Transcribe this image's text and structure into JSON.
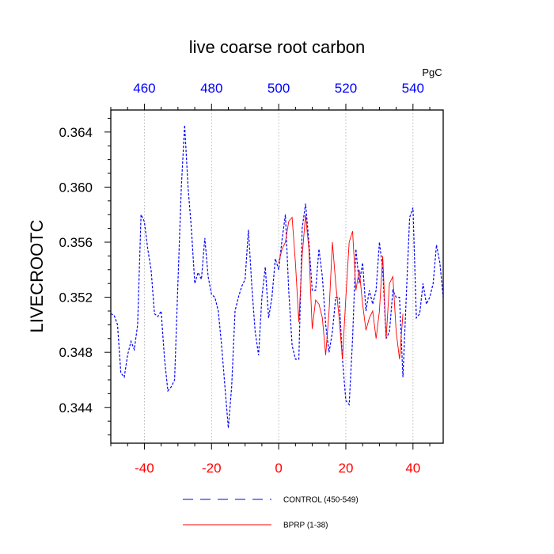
{
  "chart_data": {
    "type": "line",
    "title": "live coarse root carbon",
    "ylabel": "LIVECROOTC",
    "units_label": "PgC",
    "xlim": [
      -50,
      49
    ],
    "ylim": [
      0.3414,
      0.3656
    ],
    "x_ticks_bottom": [
      -40,
      -20,
      0,
      20,
      40
    ],
    "x_ticks_top": [
      460,
      480,
      500,
      520,
      540
    ],
    "y_ticks": [
      0.344,
      0.348,
      0.352,
      0.356,
      0.36,
      0.364
    ],
    "y_tick_labels": [
      "0.344",
      "0.348",
      "0.352",
      "0.356",
      "0.360",
      "0.364"
    ],
    "vertical_gridlines_at": [
      -40,
      -20,
      0,
      20,
      40
    ],
    "series": [
      {
        "name": "CONTROL (450-549)",
        "color": "#0000ff",
        "style": "dashed",
        "x": [
          -50,
          -49,
          -48,
          -47,
          -46,
          -45,
          -44,
          -43,
          -42,
          -41,
          -40,
          -39,
          -38,
          -37,
          -36,
          -35,
          -34,
          -33,
          -32,
          -31,
          -30,
          -29,
          -28,
          -27,
          -26,
          -25,
          -24,
          -23,
          -22,
          -21,
          -20,
          -19,
          -18,
          -17,
          -16,
          -15,
          -14,
          -13,
          -12,
          -11,
          -10,
          -9,
          -8,
          -7,
          -6,
          -5,
          -4,
          -3,
          -2,
          -1,
          0,
          1,
          2,
          3,
          4,
          5,
          6,
          7,
          8,
          9,
          10,
          11,
          12,
          13,
          14,
          15,
          16,
          17,
          18,
          19,
          20,
          21,
          22,
          23,
          24,
          25,
          26,
          27,
          28,
          29,
          30,
          31,
          32,
          33,
          34,
          35,
          36,
          37,
          38,
          39,
          40,
          41,
          42,
          43,
          44,
          45,
          46,
          47,
          48,
          49
        ],
        "y": [
          0.3508,
          0.3507,
          0.35,
          0.3465,
          0.3462,
          0.3478,
          0.3488,
          0.3482,
          0.35,
          0.358,
          0.3575,
          0.3555,
          0.354,
          0.3508,
          0.3506,
          0.351,
          0.3475,
          0.3452,
          0.3455,
          0.346,
          0.353,
          0.36,
          0.3645,
          0.36,
          0.357,
          0.353,
          0.3538,
          0.3533,
          0.3563,
          0.3535,
          0.3522,
          0.352,
          0.351,
          0.3485,
          0.3455,
          0.3425,
          0.3455,
          0.351,
          0.352,
          0.3528,
          0.3533,
          0.3569,
          0.3528,
          0.3495,
          0.3478,
          0.352,
          0.3542,
          0.3505,
          0.352,
          0.3548,
          0.354,
          0.3562,
          0.358,
          0.3525,
          0.3485,
          0.3475,
          0.3475,
          0.357,
          0.3588,
          0.356,
          0.3525,
          0.3525,
          0.3555,
          0.3535,
          0.35,
          0.348,
          0.3495,
          0.352,
          0.352,
          0.3475,
          0.3445,
          0.3442,
          0.349,
          0.3555,
          0.353,
          0.3545,
          0.351,
          0.3525,
          0.3515,
          0.3525,
          0.356,
          0.354,
          0.349,
          0.3495,
          0.3525,
          0.352,
          0.352,
          0.3462,
          0.352,
          0.3578,
          0.3585,
          0.3505,
          0.3508,
          0.353,
          0.3515,
          0.352,
          0.353,
          0.3558,
          0.3545,
          0.352
        ]
      },
      {
        "name": "BPRP (1-38)",
        "color": "#ff0000",
        "style": "solid",
        "x": [
          0,
          1,
          2,
          3,
          4,
          5,
          6,
          7,
          8,
          9,
          10,
          11,
          12,
          13,
          14,
          15,
          16,
          17,
          18,
          19,
          20,
          21,
          22,
          23,
          24,
          25,
          26,
          27,
          28,
          29,
          30,
          31,
          32,
          33,
          34,
          35,
          36,
          37
        ],
        "y": [
          0.3545,
          0.3555,
          0.356,
          0.3575,
          0.3578,
          0.3545,
          0.3502,
          0.355,
          0.358,
          0.3555,
          0.3497,
          0.3518,
          0.3515,
          0.3505,
          0.3478,
          0.351,
          0.356,
          0.353,
          0.3505,
          0.3475,
          0.352,
          0.356,
          0.3568,
          0.3525,
          0.354,
          0.3515,
          0.3496,
          0.3505,
          0.351,
          0.349,
          0.351,
          0.355,
          0.349,
          0.353,
          0.3535,
          0.3495,
          0.3475,
          0.3508
        ]
      }
    ],
    "legend": [
      {
        "label": "CONTROL (450-549)",
        "style": "dashed",
        "color": "#0000ff"
      },
      {
        "label": "BPRP (1-38)",
        "style": "solid",
        "color": "#ff0000"
      }
    ]
  }
}
